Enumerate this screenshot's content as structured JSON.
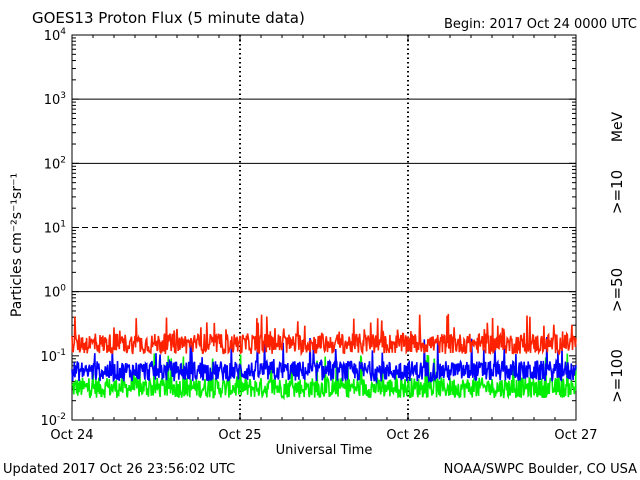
{
  "header": {
    "title": "GOES13 Proton Flux (5 minute data)",
    "begin": "Begin: 2017 Oct 24 0000 UTC"
  },
  "footer": {
    "updated": "Updated 2017 Oct 26 23:56:02 UTC",
    "credit": "NOAA/SWPC Boulder, CO USA"
  },
  "chart_data": {
    "type": "line",
    "xlabel": "Universal Time",
    "ylabel": "Particles cm⁻²s⁻¹sr⁻¹",
    "yscale": "log",
    "ylim": [
      0.01,
      10000
    ],
    "xlim_days": [
      0,
      3
    ],
    "x_tick_labels": [
      "Oct 24",
      "Oct 25",
      "Oct 26",
      "Oct 27"
    ],
    "y_tick_labels": [
      {
        "base": "10",
        "exp": "-2"
      },
      {
        "base": "10",
        "exp": "-1"
      },
      {
        "base": "10",
        "exp": "0"
      },
      {
        "base": "10",
        "exp": "1"
      },
      {
        "base": "10",
        "exp": "2"
      },
      {
        "base": "10",
        "exp": "3"
      },
      {
        "base": "10",
        "exp": "4"
      }
    ],
    "unit_label": "MeV",
    "threshold_lines": [
      {
        "value": 1000,
        "style": "solid"
      },
      {
        "value": 100,
        "style": "solid"
      },
      {
        "value": 10,
        "style": "dashed"
      },
      {
        "value": 1,
        "style": "solid"
      }
    ],
    "series": [
      {
        "name": ">=10",
        "color": "#ff2200",
        "baseline": 0.16,
        "peak": 0.45
      },
      {
        "name": ">=50",
        "color": "#0000ff",
        "baseline": 0.06,
        "peak": 0.2
      },
      {
        "name": ">=100",
        "color": "#00ee00",
        "baseline": 0.033,
        "peak": 0.11
      }
    ]
  }
}
